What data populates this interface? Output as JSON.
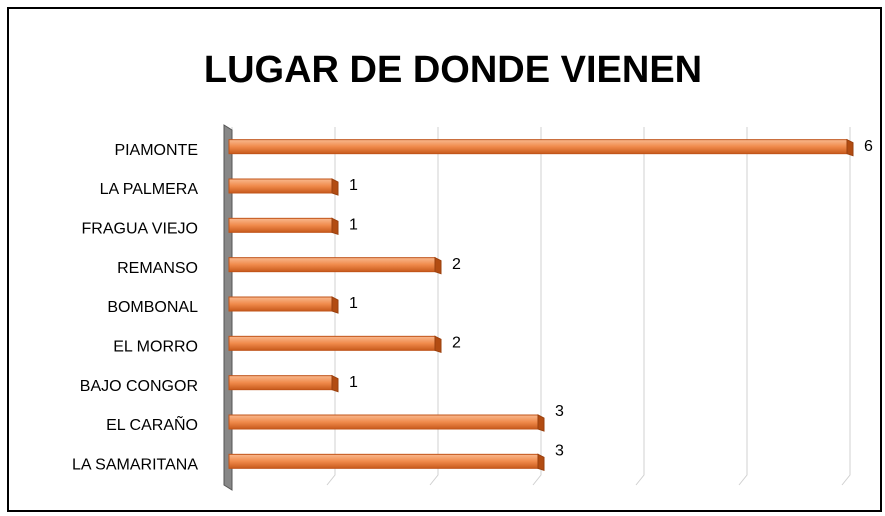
{
  "chart_data": {
    "type": "bar",
    "orientation": "horizontal",
    "title": "LUGAR DE DONDE VIENEN",
    "categories": [
      "PIAMONTE",
      "LA PALMERA",
      "FRAGUA VIEJO",
      "REMANSO",
      "BOMBONAL",
      "EL MORRO",
      "BAJO CONGOR",
      "EL CARAÑO",
      "LA SAMARITANA"
    ],
    "values": [
      6,
      1,
      1,
      2,
      1,
      2,
      1,
      3,
      3
    ],
    "color": "#f08a4b",
    "xlim": [
      0,
      6
    ],
    "xticks": [
      0,
      1,
      2,
      3,
      4,
      5,
      6
    ],
    "grid": true
  }
}
